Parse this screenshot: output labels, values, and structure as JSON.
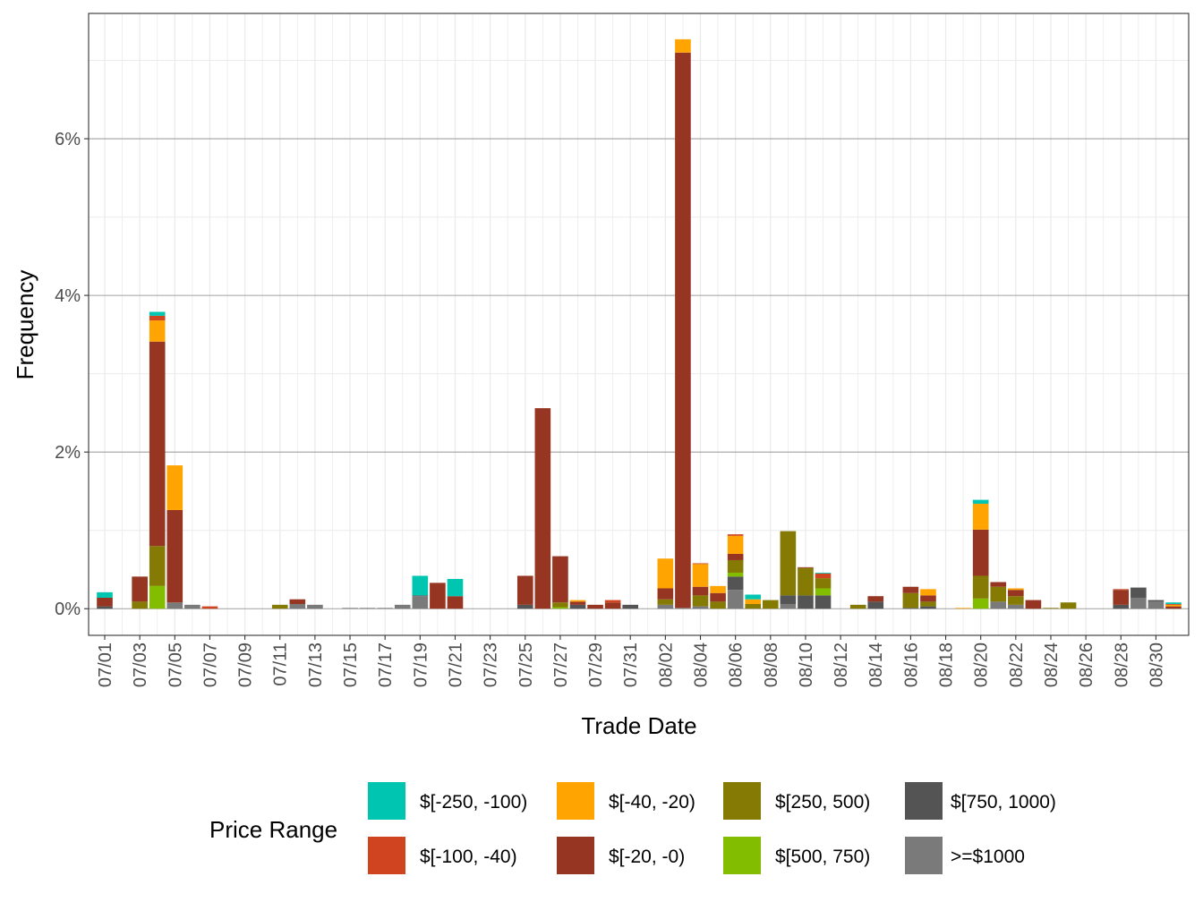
{
  "chart_data": {
    "type": "bar",
    "stacked": true,
    "xlabel": "Trade Date",
    "ylabel": "Frequency",
    "ylim": [
      -0.34,
      7.6
    ],
    "yticks": [
      0,
      2,
      4,
      6
    ],
    "ytick_labels": [
      "0%",
      "2%",
      "4%",
      "6%"
    ],
    "grid": true,
    "categories": [
      "07/01",
      "07/02",
      "07/03",
      "07/04",
      "07/05",
      "07/06",
      "07/07",
      "07/08",
      "07/09",
      "07/10",
      "07/11",
      "07/12",
      "07/13",
      "07/14",
      "07/15",
      "07/16",
      "07/17",
      "07/18",
      "07/19",
      "07/20",
      "07/21",
      "07/22",
      "07/23",
      "07/24",
      "07/25",
      "07/26",
      "07/27",
      "07/28",
      "07/29",
      "07/30",
      "07/31",
      "08/01",
      "08/02",
      "08/03",
      "08/04",
      "08/05",
      "08/06",
      "08/07",
      "08/08",
      "08/09",
      "08/10",
      "08/11",
      "08/12",
      "08/13",
      "08/14",
      "08/15",
      "08/16",
      "08/17",
      "08/18",
      "08/19",
      "08/20",
      "08/21",
      "08/22",
      "08/23",
      "08/24",
      "08/25",
      "08/26",
      "08/27",
      "08/28",
      "08/29",
      "08/30",
      "08/31"
    ],
    "xtick_labels": [
      "07/01",
      "07/03",
      "07/05",
      "07/07",
      "07/09",
      "07/11",
      "07/13",
      "07/15",
      "07/17",
      "07/19",
      "07/21",
      "07/23",
      "07/25",
      "07/27",
      "07/29",
      "07/31",
      "08/02",
      "08/04",
      "08/06",
      "08/08",
      "08/10",
      "08/12",
      "08/14",
      "08/16",
      "08/18",
      "08/20",
      "08/22",
      "08/24",
      "08/26",
      "08/28",
      "08/30"
    ],
    "legend": {
      "title": "Price Range",
      "position": "bottom"
    },
    "series": [
      {
        "name": ">=$1000",
        "color": "#7a7a7a",
        "values": {
          "07/05": 0.08,
          "07/06": 0.05,
          "07/12": 0.06,
          "07/13": 0.05,
          "07/15": 0.01,
          "07/16": 0.01,
          "07/17": 0.01,
          "07/18": 0.05,
          "07/19": 0.16,
          "08/02": 0.05,
          "08/03": 0.01,
          "08/04": 0.03,
          "08/06": 0.24,
          "08/09": 0.06,
          "08/21": 0.09,
          "08/22": 0.05,
          "08/29": 0.14,
          "08/30": 0.09
        }
      },
      {
        "name": "$[750, 1000)",
        "color": "#545454",
        "values": {
          "07/01": 0.03,
          "07/19": 0.01,
          "07/25": 0.05,
          "07/28": 0.05,
          "07/31": 0.05,
          "08/06": 0.17,
          "08/09": 0.11,
          "08/10": 0.17,
          "08/11": 0.17,
          "08/14": 0.09,
          "08/16": 0.01,
          "08/17": 0.03,
          "08/28": 0.05,
          "08/29": 0.13,
          "08/30": 0.02
        }
      },
      {
        "name": "$[500, 750)",
        "color": "#83bd00",
        "values": {
          "07/04": 0.29,
          "07/27": 0.02,
          "08/06": 0.05,
          "08/11": 0.09,
          "08/20": 0.13
        }
      },
      {
        "name": "$[250, 500)",
        "color": "#857a03",
        "values": {
          "07/03": 0.09,
          "07/04": 0.51,
          "07/11": 0.05,
          "07/27": 0.06,
          "08/02": 0.07,
          "08/04": 0.14,
          "08/05": 0.09,
          "08/06": 0.16,
          "08/07": 0.06,
          "08/08": 0.11,
          "08/09": 0.82,
          "08/10": 0.35,
          "08/11": 0.13,
          "08/13": 0.05,
          "08/16": 0.19,
          "08/17": 0.06,
          "08/20": 0.29,
          "08/21": 0.19,
          "08/22": 0.11,
          "08/24": 0.01,
          "08/25": 0.08
        }
      },
      {
        "name": "$[-20, -0)",
        "color": "#963521",
        "values": {
          "07/01": 0.11,
          "07/03": 0.32,
          "07/04": 2.61,
          "07/05": 1.18,
          "07/12": 0.06,
          "07/20": 0.33,
          "07/21": 0.16,
          "07/25": 0.37,
          "07/26": 2.56,
          "07/27": 0.59,
          "07/28": 0.04,
          "07/29": 0.05,
          "07/30": 0.08,
          "08/02": 0.14,
          "08/03": 7.09,
          "08/04": 0.11,
          "08/05": 0.11,
          "08/06": 0.08,
          "08/10": 0.01,
          "08/14": 0.07,
          "08/16": 0.08,
          "08/17": 0.08,
          "08/20": 0.59,
          "08/21": 0.06,
          "08/22": 0.08,
          "08/23": 0.11,
          "08/28": 0.19,
          "08/31": 0.03
        }
      },
      {
        "name": "$[-40, -20)",
        "color": "#ffa400",
        "values": {
          "07/04": 0.27,
          "07/05": 0.57,
          "07/28": 0.02,
          "08/02": 0.38,
          "08/03": 0.17,
          "08/04": 0.29,
          "08/05": 0.09,
          "08/06": 0.23,
          "08/07": 0.06,
          "08/17": 0.08,
          "08/19": 0.01,
          "08/20": 0.33,
          "08/22": 0.02,
          "08/31": 0.02
        }
      },
      {
        "name": "$[-100, -40)",
        "color": "#d04520",
        "values": {
          "07/04": 0.06,
          "07/07": 0.03,
          "07/30": 0.03,
          "08/04": 0.01,
          "08/06": 0.02,
          "08/11": 0.06,
          "08/28": 0.01,
          "08/31": 0.01
        }
      },
      {
        "name": "$[-250, -100)",
        "color": "#00c5b0",
        "values": {
          "07/01": 0.07,
          "07/04": 0.05,
          "07/19": 0.25,
          "07/21": 0.22,
          "08/07": 0.06,
          "08/11": 0.01,
          "08/20": 0.05,
          "08/31": 0.02
        }
      }
    ]
  }
}
